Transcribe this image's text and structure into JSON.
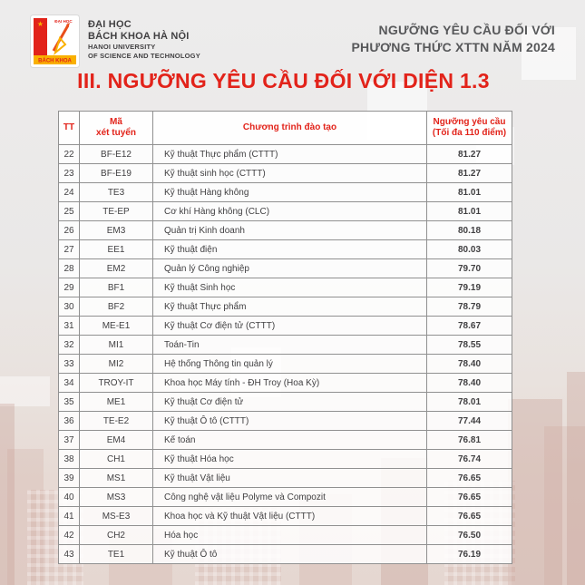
{
  "header": {
    "logo": {
      "top_text": "ĐẠI HỌC",
      "bottom_text": "BÁCH KHOA"
    },
    "university": {
      "line1": "ĐẠI HỌC",
      "line2": "BÁCH KHOA HÀ NỘI",
      "line3": "HANOI UNIVERSITY",
      "line4": "OF SCIENCE AND TECHNOLOGY"
    },
    "right_title": {
      "line1": "NGƯỠNG YÊU CẦU ĐỐI VỚI",
      "line2": "PHƯƠNG THỨC XTTN NĂM 2024"
    }
  },
  "page_title": "III. NGƯỠNG YÊU CẦU ĐỐI VỚI DIỆN 1.3",
  "table": {
    "columns": {
      "tt": "TT",
      "code_line1": "Mã",
      "code_line2": "xét tuyển",
      "program": "Chương trình đào tạo",
      "threshold_line1": "Ngưỡng yêu cầu",
      "threshold_line2": "(Tối đa 110 điểm)"
    },
    "rows": [
      {
        "tt": "22",
        "code": "BF-E12",
        "program": "Kỹ thuật Thực phẩm (CTTT)",
        "score": "81.27"
      },
      {
        "tt": "23",
        "code": "BF-E19",
        "program": "Kỹ thuật sinh học (CTTT)",
        "score": "81.27"
      },
      {
        "tt": "24",
        "code": "TE3",
        "program": "Kỹ thuật Hàng không",
        "score": "81.01"
      },
      {
        "tt": "25",
        "code": "TE-EP",
        "program": "Cơ khí Hàng không (CLC)",
        "score": "81.01"
      },
      {
        "tt": "26",
        "code": "EM3",
        "program": "Quản trị Kinh doanh",
        "score": "80.18"
      },
      {
        "tt": "27",
        "code": "EE1",
        "program": "Kỹ thuật điện",
        "score": "80.03"
      },
      {
        "tt": "28",
        "code": "EM2",
        "program": "Quản lý Công nghiệp",
        "score": "79.70"
      },
      {
        "tt": "29",
        "code": "BF1",
        "program": "Kỹ thuật Sinh học",
        "score": "79.19"
      },
      {
        "tt": "30",
        "code": "BF2",
        "program": "Kỹ thuật Thực phẩm",
        "score": "78.79"
      },
      {
        "tt": "31",
        "code": "ME-E1",
        "program": "Kỹ thuật Cơ điện tử (CTTT)",
        "score": "78.67"
      },
      {
        "tt": "32",
        "code": "MI1",
        "program": "Toán-Tin",
        "score": "78.55"
      },
      {
        "tt": "33",
        "code": "MI2",
        "program": "Hệ thống Thông tin quản lý",
        "score": "78.40"
      },
      {
        "tt": "34",
        "code": "TROY-IT",
        "program": "Khoa học Máy tính - ĐH Troy (Hoa Kỳ)",
        "score": "78.40"
      },
      {
        "tt": "35",
        "code": "ME1",
        "program": "Kỹ thuật Cơ điện tử",
        "score": "78.01"
      },
      {
        "tt": "36",
        "code": "TE-E2",
        "program": "Kỹ thuật Ô tô (CTTT)",
        "score": "77.44"
      },
      {
        "tt": "37",
        "code": "EM4",
        "program": "Kế toán",
        "score": "76.81"
      },
      {
        "tt": "38",
        "code": "CH1",
        "program": "Kỹ thuật Hóa học",
        "score": "76.74"
      },
      {
        "tt": "39",
        "code": "MS1",
        "program": "Kỹ thuật Vật liệu",
        "score": "76.65"
      },
      {
        "tt": "40",
        "code": "MS3",
        "program": "Công nghệ vật liệu Polyme và Compozit",
        "score": "76.65"
      },
      {
        "tt": "41",
        "code": "MS-E3",
        "program": "Khoa học và Kỹ thuật Vật liệu (CTTT)",
        "score": "76.65"
      },
      {
        "tt": "42",
        "code": "CH2",
        "program": "Hóa học",
        "score": "76.50"
      },
      {
        "tt": "43",
        "code": "TE1",
        "program": "Kỹ thuật Ô tô",
        "score": "76.19"
      }
    ]
  },
  "colors": {
    "accent_red": "#e2231a",
    "dark_text": "#414042",
    "gold": "#f9b000",
    "header_gray_text": "#57585a"
  }
}
